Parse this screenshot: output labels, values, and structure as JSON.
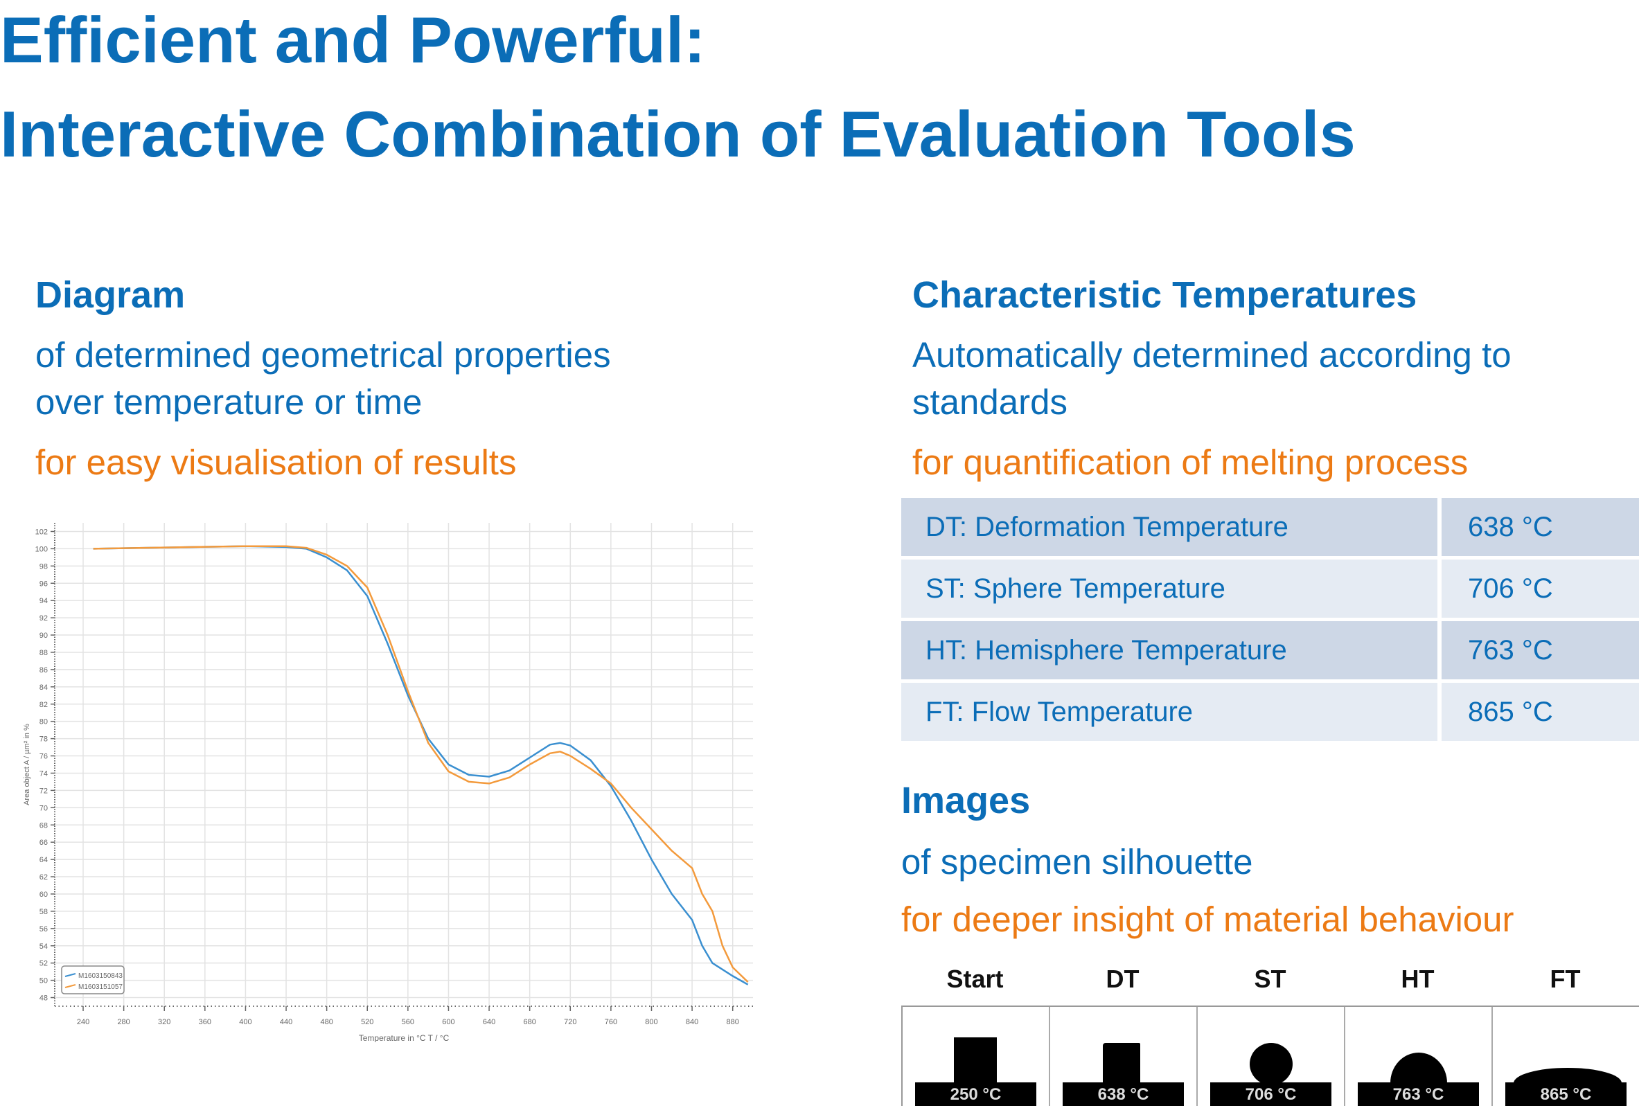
{
  "title": {
    "line1": "Efficient and Powerful:",
    "line2": "Interactive Combination of Evaluation Tools"
  },
  "diagram": {
    "heading": "Diagram",
    "line1": "of determined geometrical properties",
    "line2": "over temperature or time",
    "benefit": "for easy visualisation of results"
  },
  "characteristic": {
    "heading": "Characteristic Temperatures",
    "line1": "Automatically determined according to",
    "line2": "standards",
    "benefit": "for quantification of melting process",
    "rows": [
      {
        "label": "DT: Deformation Temperature",
        "value": "638 °C"
      },
      {
        "label": "ST: Sphere Temperature",
        "value": "706 °C"
      },
      {
        "label": "HT: Hemisphere Temperature",
        "value": "763 °C"
      },
      {
        "label": "FT: Flow Temperature",
        "value": "865 °C"
      }
    ]
  },
  "images": {
    "heading": "Images",
    "line1": "of specimen silhouette",
    "benefit": "for deeper insight of material behaviour",
    "items": [
      {
        "label": "Start",
        "temp": "250 °C",
        "shape": "cylinder"
      },
      {
        "label": "DT",
        "temp": "638 °C",
        "shape": "deformed-cylinder"
      },
      {
        "label": "ST",
        "temp": "706 °C",
        "shape": "sphere"
      },
      {
        "label": "HT",
        "temp": "763 °C",
        "shape": "hemisphere"
      },
      {
        "label": "FT",
        "temp": "865 °C",
        "shape": "flat"
      }
    ]
  },
  "colors": {
    "blue_text": "#0b6db7",
    "orange_text": "#ec7a14",
    "series_blue": "#3a8fd0",
    "series_orange": "#f39a3c"
  },
  "chart_data": {
    "type": "line",
    "xlabel": "Temperature in °C T / °C",
    "ylabel": "Area object A / µm² in %",
    "xlim": [
      212,
      900
    ],
    "ylim": [
      47,
      103
    ],
    "xticks": [
      240,
      280,
      320,
      360,
      400,
      440,
      480,
      520,
      560,
      600,
      640,
      680,
      720,
      760,
      800,
      840,
      880
    ],
    "yticks": [
      102,
      100,
      98,
      96,
      94,
      92,
      90,
      88,
      86,
      84,
      82,
      80,
      78,
      76,
      74,
      72,
      70,
      68,
      66,
      64,
      62,
      60,
      58,
      56,
      54,
      52,
      50,
      48
    ],
    "grid": true,
    "legend_position": "bottom-left",
    "series": [
      {
        "name": "M1603150843",
        "color": "#3a8fd0",
        "x": [
          250,
          300,
          350,
          400,
          440,
          460,
          480,
          500,
          520,
          540,
          560,
          580,
          600,
          620,
          640,
          660,
          680,
          700,
          710,
          720,
          740,
          760,
          780,
          800,
          820,
          840,
          850,
          860,
          880,
          895
        ],
        "y": [
          100,
          100.1,
          100.2,
          100.3,
          100.2,
          100,
          99,
          97.5,
          94.5,
          89,
          83,
          78,
          75,
          73.8,
          73.6,
          74.3,
          75.8,
          77.3,
          77.5,
          77.2,
          75.5,
          72.5,
          68.5,
          64,
          60,
          57,
          54,
          52,
          50.5,
          49.5
        ]
      },
      {
        "name": "M1603151057",
        "color": "#f39a3c",
        "x": [
          250,
          300,
          350,
          400,
          440,
          460,
          480,
          500,
          520,
          540,
          560,
          580,
          600,
          620,
          640,
          660,
          680,
          700,
          710,
          720,
          740,
          760,
          780,
          800,
          820,
          840,
          850,
          860,
          870,
          880,
          895
        ],
        "y": [
          100,
          100.1,
          100.2,
          100.3,
          100.3,
          100.1,
          99.3,
          98,
          95.5,
          90,
          83.5,
          77.5,
          74.2,
          73,
          72.8,
          73.5,
          75,
          76.3,
          76.5,
          76,
          74.5,
          72.8,
          70,
          67.5,
          65,
          63,
          60,
          58,
          54,
          51.5,
          49.8
        ]
      }
    ]
  }
}
